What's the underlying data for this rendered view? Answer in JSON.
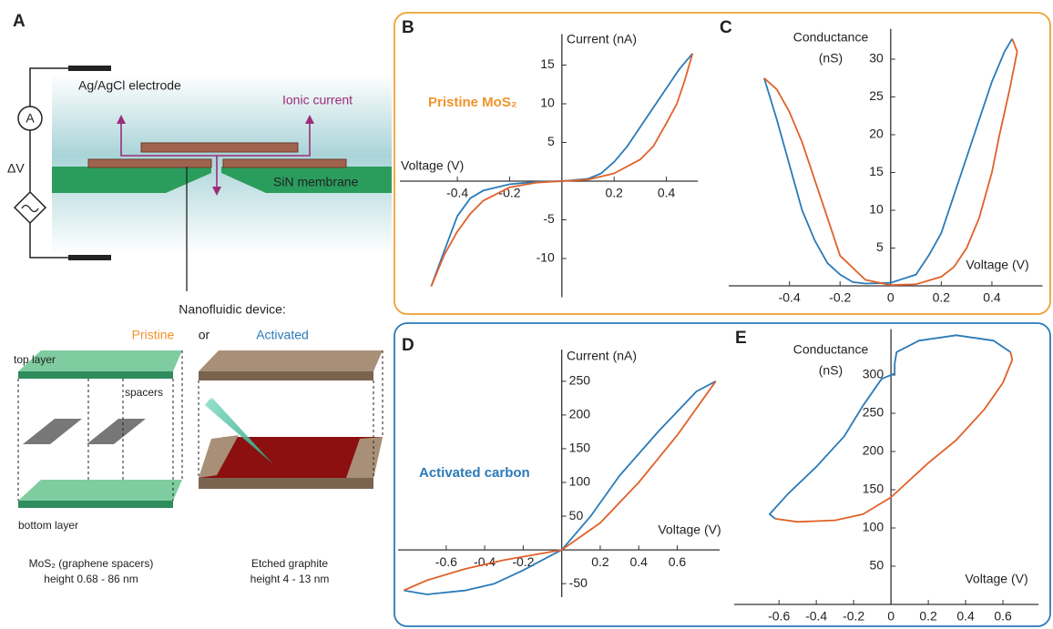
{
  "panel_a": {
    "letter": "A",
    "electrode": "Ag/AgCl electrode",
    "ammeter": "A",
    "voltage": "ΔV",
    "ionic_current": "Ionic current",
    "membrane": "SiN membrane",
    "device_title": "Nanofluidic device:",
    "pristine": "Pristine",
    "or": "or",
    "activated": "Activated",
    "top_layer": "top layer",
    "spacers": "spacers",
    "electron_beam": "electron beam",
    "bottom_layer": "bottom layer",
    "left_caption": [
      "MoS₂ (graphene spacers)",
      "height 0.68 - 86 nm"
    ],
    "right_caption": [
      "Etched graphite",
      "height 4 - 13 nm"
    ]
  },
  "chart_data": [
    {
      "type": "line",
      "panel": "B",
      "annotation": "Pristine MoS₂",
      "annotation_color": "#f0932b",
      "frame_color": "#f0a030",
      "xlabel": "Voltage (V)",
      "ylabel": "Current (nA)",
      "xlim": [
        -0.62,
        0.52
      ],
      "ylim": [
        -15,
        19
      ],
      "xticks": [
        -0.4,
        -0.2,
        0.2,
        0.4
      ],
      "yticks": [
        -10,
        -5,
        5,
        10,
        15
      ],
      "grid": false,
      "series": [
        {
          "color": "#2a7ab8",
          "x": [
            -0.5,
            -0.45,
            -0.4,
            -0.35,
            -0.3,
            -0.2,
            -0.1,
            0,
            0.1,
            0.15,
            0.2,
            0.25,
            0.3,
            0.35,
            0.4,
            0.45,
            0.5
          ],
          "values": [
            -13.6,
            -9,
            -4.5,
            -2.2,
            -1.2,
            -0.4,
            -0.1,
            0,
            0.3,
            1,
            2.5,
            4.5,
            7,
            9.5,
            12,
            14.5,
            16.5
          ]
        },
        {
          "color": "#e0612a",
          "x": [
            0.5,
            0.47,
            0.44,
            0.4,
            0.35,
            0.3,
            0.2,
            0.1,
            0,
            -0.1,
            -0.2,
            -0.3,
            -0.35,
            -0.4,
            -0.45,
            -0.5
          ],
          "values": [
            16.5,
            13,
            10,
            7.5,
            4.5,
            2.8,
            1,
            0.2,
            0,
            -0.2,
            -0.8,
            -2.5,
            -4.2,
            -6.5,
            -9.5,
            -13.6
          ]
        }
      ]
    },
    {
      "type": "line",
      "panel": "C",
      "xlabel": "Voltage (V)",
      "ylabel": [
        "Conductance",
        "(nS)"
      ],
      "xlim": [
        -0.64,
        0.6
      ],
      "ylim": [
        0,
        34
      ],
      "xticks": [
        -0.4,
        -0.2,
        0,
        0.2,
        0.4
      ],
      "yticks": [
        5,
        10,
        15,
        20,
        25,
        30
      ],
      "grid": false,
      "series": [
        {
          "color": "#2a7ab8",
          "x": [
            -0.5,
            -0.45,
            -0.4,
            -0.35,
            -0.3,
            -0.25,
            -0.2,
            -0.15,
            -0.1,
            0,
            0.1,
            0.15,
            0.2,
            0.25,
            0.3,
            0.35,
            0.4,
            0.45,
            0.48
          ],
          "values": [
            27.5,
            22,
            16,
            10,
            6,
            3,
            1.5,
            0.5,
            0.3,
            0.4,
            1.5,
            4,
            7,
            12,
            17,
            22,
            27,
            31,
            32.7
          ]
        },
        {
          "color": "#e0612a",
          "x": [
            0.48,
            0.5,
            0.47,
            0.43,
            0.4,
            0.35,
            0.3,
            0.25,
            0.2,
            0.1,
            0,
            -0.1,
            -0.2,
            -0.25,
            -0.3,
            -0.35,
            -0.4,
            -0.45,
            -0.5
          ],
          "values": [
            32.7,
            31,
            26,
            20,
            15,
            9,
            5,
            2.5,
            1.2,
            0.2,
            0.1,
            0.8,
            4,
            9,
            14,
            19,
            23,
            26,
            27.5
          ]
        }
      ]
    },
    {
      "type": "line",
      "panel": "D",
      "annotation": "Activated carbon",
      "annotation_color": "#2a7ab8",
      "frame_color": "#2a7ab8",
      "xlabel": "Voltage (V)",
      "ylabel": "Current (nA)",
      "xlim": [
        -0.85,
        0.82
      ],
      "ylim": [
        -70,
        297
      ],
      "xticks": [
        -0.6,
        -0.4,
        -0.2,
        0.2,
        0.4,
        0.6
      ],
      "yticks": [
        -50,
        50,
        100,
        150,
        200,
        250
      ],
      "grid": false,
      "series": [
        {
          "color": "#2a7ab8",
          "x": [
            0.8,
            0.7,
            0.5,
            0.3,
            0.15,
            0,
            -0.1,
            -0.2,
            -0.35,
            -0.5,
            -0.7,
            -0.82
          ],
          "values": [
            250,
            235,
            175,
            110,
            50,
            0,
            -15,
            -30,
            -50,
            -60,
            -66,
            -60
          ]
        },
        {
          "color": "#e0612a",
          "x": [
            -0.82,
            -0.7,
            -0.5,
            -0.3,
            0,
            0.2,
            0.4,
            0.6,
            0.75,
            0.8
          ],
          "values": [
            -60,
            -45,
            -28,
            -15,
            0,
            40,
            100,
            170,
            230,
            250
          ]
        }
      ]
    },
    {
      "type": "line",
      "panel": "E",
      "xlabel": "Voltage (V)",
      "ylabel": [
        "Conductance",
        "(nS)"
      ],
      "xlim": [
        -0.84,
        0.79
      ],
      "ylim": [
        0,
        360
      ],
      "xticks": [
        -0.6,
        -0.4,
        -0.2,
        0,
        0.2,
        0.4,
        0.6
      ],
      "yticks": [
        50,
        100,
        150,
        200,
        250,
        300
      ],
      "grid": false,
      "series": [
        {
          "color": "#2a7ab8",
          "x": [
            0.64,
            0.55,
            0.35,
            0.15,
            0.03,
            0.02,
            0.02,
            -0.05,
            -0.15,
            -0.25,
            -0.4,
            -0.55,
            -0.65,
            -0.62
          ],
          "values": [
            330,
            345,
            352,
            345,
            330,
            315,
            302,
            295,
            260,
            220,
            180,
            145,
            118,
            112
          ]
        },
        {
          "color": "#e0612a",
          "x": [
            -0.62,
            -0.5,
            -0.3,
            -0.15,
            0,
            0.2,
            0.35,
            0.5,
            0.6,
            0.65,
            0.64
          ],
          "values": [
            112,
            108,
            110,
            118,
            140,
            185,
            215,
            255,
            290,
            320,
            330
          ]
        }
      ]
    }
  ]
}
